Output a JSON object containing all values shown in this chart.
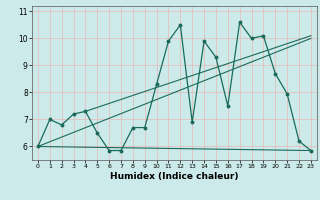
{
  "title": "",
  "xlabel": "Humidex (Indice chaleur)",
  "bg_color": "#cceaea",
  "grid_color": "#e8b8b8",
  "line_color": "#1a6b5a",
  "xlim": [
    -0.5,
    23.5
  ],
  "ylim": [
    5.5,
    11.2
  ],
  "yticks": [
    6,
    7,
    8,
    9,
    10,
    11
  ],
  "xticks": [
    0,
    1,
    2,
    3,
    4,
    5,
    6,
    7,
    8,
    9,
    10,
    11,
    12,
    13,
    14,
    15,
    16,
    17,
    18,
    19,
    20,
    21,
    22,
    23
  ],
  "series": [
    [
      0,
      6.0
    ],
    [
      1,
      7.0
    ],
    [
      2,
      6.8
    ],
    [
      3,
      7.2
    ],
    [
      4,
      7.3
    ],
    [
      5,
      6.5
    ],
    [
      6,
      5.85
    ],
    [
      7,
      5.85
    ],
    [
      8,
      6.7
    ],
    [
      9,
      6.7
    ],
    [
      10,
      8.3
    ],
    [
      11,
      9.9
    ],
    [
      12,
      10.5
    ],
    [
      13,
      6.9
    ],
    [
      14,
      9.9
    ],
    [
      15,
      9.3
    ],
    [
      16,
      7.5
    ],
    [
      17,
      10.6
    ],
    [
      18,
      10.0
    ],
    [
      19,
      10.1
    ],
    [
      20,
      8.7
    ],
    [
      21,
      7.95
    ],
    [
      22,
      6.2
    ],
    [
      23,
      5.85
    ]
  ],
  "line2": [
    [
      0,
      6.0
    ],
    [
      23,
      5.85
    ]
  ],
  "line3": [
    [
      0,
      6.0
    ],
    [
      23,
      10.0
    ]
  ],
  "line4": [
    [
      4,
      7.3
    ],
    [
      23,
      10.1
    ]
  ]
}
